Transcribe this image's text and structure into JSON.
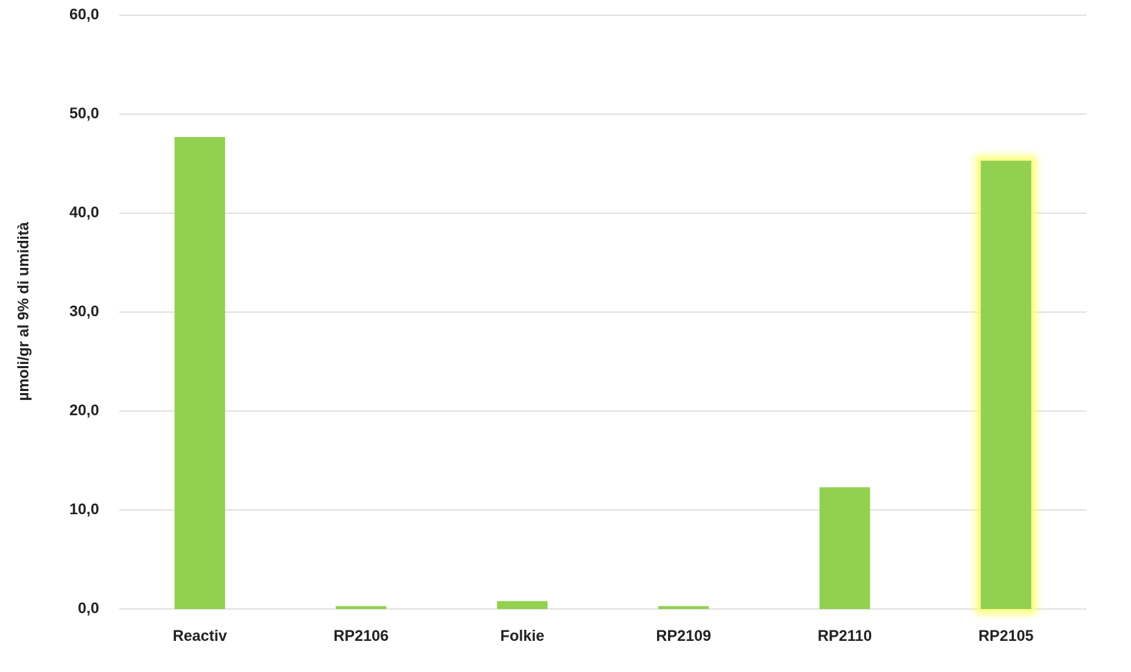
{
  "chart_data": {
    "type": "bar",
    "y_axis_label": "µmoli/gr al 9% di umidità",
    "categories": [
      "Reactiv",
      "RP2106",
      "Folkie",
      "RP2109",
      "RP2110",
      "RP2105"
    ],
    "values": [
      47.7,
      0.3,
      0.8,
      0.3,
      12.3,
      45.3
    ],
    "color": "#92d050",
    "ylim": [
      0,
      60
    ],
    "yticks": [
      {
        "value": 0,
        "label": "0,0"
      },
      {
        "value": 10,
        "label": "10,0"
      },
      {
        "value": 20,
        "label": "20,0"
      },
      {
        "value": 30,
        "label": "30,0"
      },
      {
        "value": 40,
        "label": "40,0"
      },
      {
        "value": 50,
        "label": "50,0"
      },
      {
        "value": 60,
        "label": "60,0"
      }
    ],
    "grid": true
  }
}
